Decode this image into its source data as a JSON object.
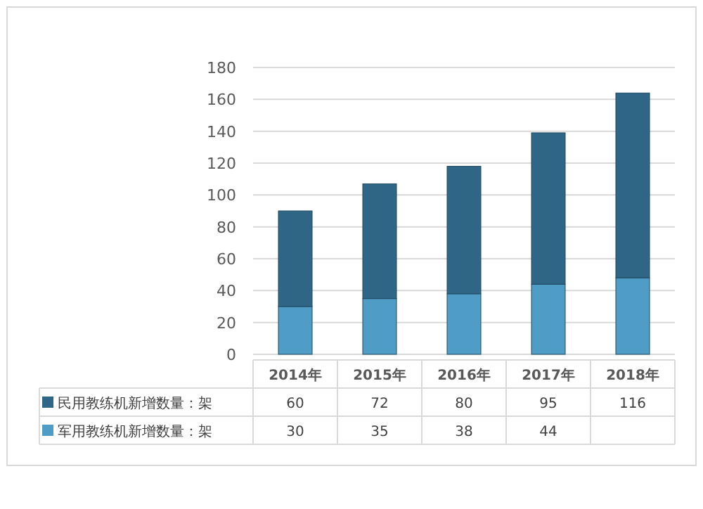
{
  "chart_data": {
    "type": "bar",
    "stacked": true,
    "categories": [
      "2014年",
      "2015年",
      "2016年",
      "2017年",
      "2018年"
    ],
    "series": [
      {
        "name": "军用教练机新增数量：架",
        "color": "#4f9cc6",
        "values": [
          30,
          35,
          38,
          44,
          48
        ],
        "value_labels": [
          "30",
          "35",
          "38",
          "44",
          null
        ]
      },
      {
        "name": "民用教练机新增数量：架",
        "color": "#2f6585",
        "values": [
          60,
          72,
          80,
          95,
          116
        ],
        "value_labels": [
          "60",
          "72",
          "80",
          "95",
          "116"
        ]
      }
    ],
    "ylim": [
      0,
      180
    ],
    "yticks": [
      0,
      20,
      40,
      60,
      80,
      100,
      120,
      140,
      160,
      180
    ],
    "grid": "y",
    "legend": "bottom"
  }
}
